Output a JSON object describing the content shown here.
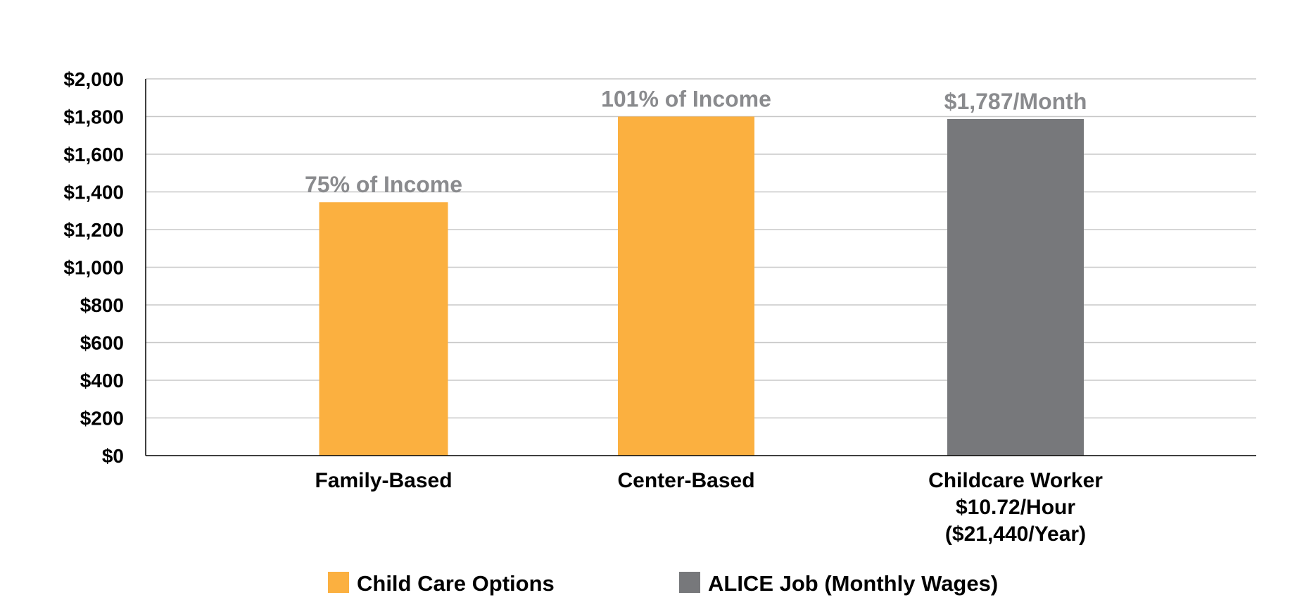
{
  "chart_data": {
    "type": "bar",
    "ylim": [
      0,
      2000
    ],
    "yticks": [
      0,
      200,
      400,
      600,
      800,
      1000,
      1200,
      1400,
      1600,
      1800,
      2000
    ],
    "ytick_labels": [
      "$0",
      "$200",
      "$400",
      "$600",
      "$800",
      "$1,000",
      "$1,200",
      "$1,400",
      "$1,600",
      "$1,800",
      "$2,000"
    ],
    "grid": true,
    "categories": [
      [
        "Family-Based"
      ],
      [
        "Center-Based"
      ],
      [
        "Childcare Worker",
        "$10.72/Hour",
        "($21,440/Year)"
      ]
    ],
    "bars": [
      {
        "value": 1345,
        "series": 0,
        "label": "75% of Income"
      },
      {
        "value": 1800,
        "series": 0,
        "label": "101% of Income"
      },
      {
        "value": 1787,
        "series": 1,
        "label": "$1,787/Month"
      }
    ],
    "series": [
      {
        "name": "Child Care Options",
        "color": "#fbb040"
      },
      {
        "name": "ALICE Job (Monthly Wages)",
        "color": "#77787b"
      }
    ],
    "legend_position": "bottom"
  }
}
